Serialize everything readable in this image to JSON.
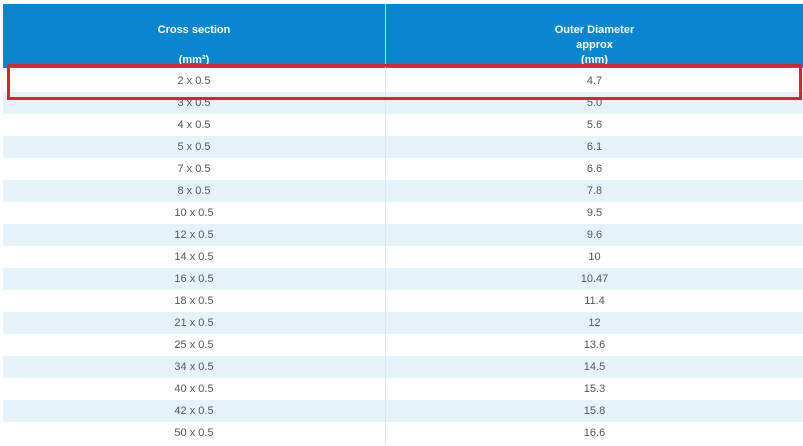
{
  "table": {
    "header": {
      "col0": {
        "title": "Cross section",
        "unit": "(mm²)"
      },
      "col1": {
        "title": "Outer Diameter",
        "subtitle": "approx",
        "unit": "(mm)"
      }
    },
    "rows": [
      [
        "2 x 0.5",
        "4.7"
      ],
      [
        "3 x 0.5",
        "5.0"
      ],
      [
        "4 x 0.5",
        "5.6"
      ],
      [
        "5 x 0.5",
        "6.1"
      ],
      [
        "7 x 0.5",
        "6.6"
      ],
      [
        "8 x 0.5",
        "7.8"
      ],
      [
        "10 x 0.5",
        "9.5"
      ],
      [
        "12 x 0.5",
        "9.6"
      ],
      [
        "14 x 0.5",
        "10"
      ],
      [
        "16 x 0.5",
        "10.47"
      ],
      [
        "18 x 0.5",
        "11.4"
      ],
      [
        "21 x 0.5",
        "12"
      ],
      [
        "25 x 0.5",
        "13.6"
      ],
      [
        "34 x 0.5",
        "14.5"
      ],
      [
        "40 x 0.5",
        "15.3"
      ],
      [
        "42 x 0.5",
        "15.8"
      ],
      [
        "50 x 0.5",
        "16.6"
      ]
    ]
  }
}
